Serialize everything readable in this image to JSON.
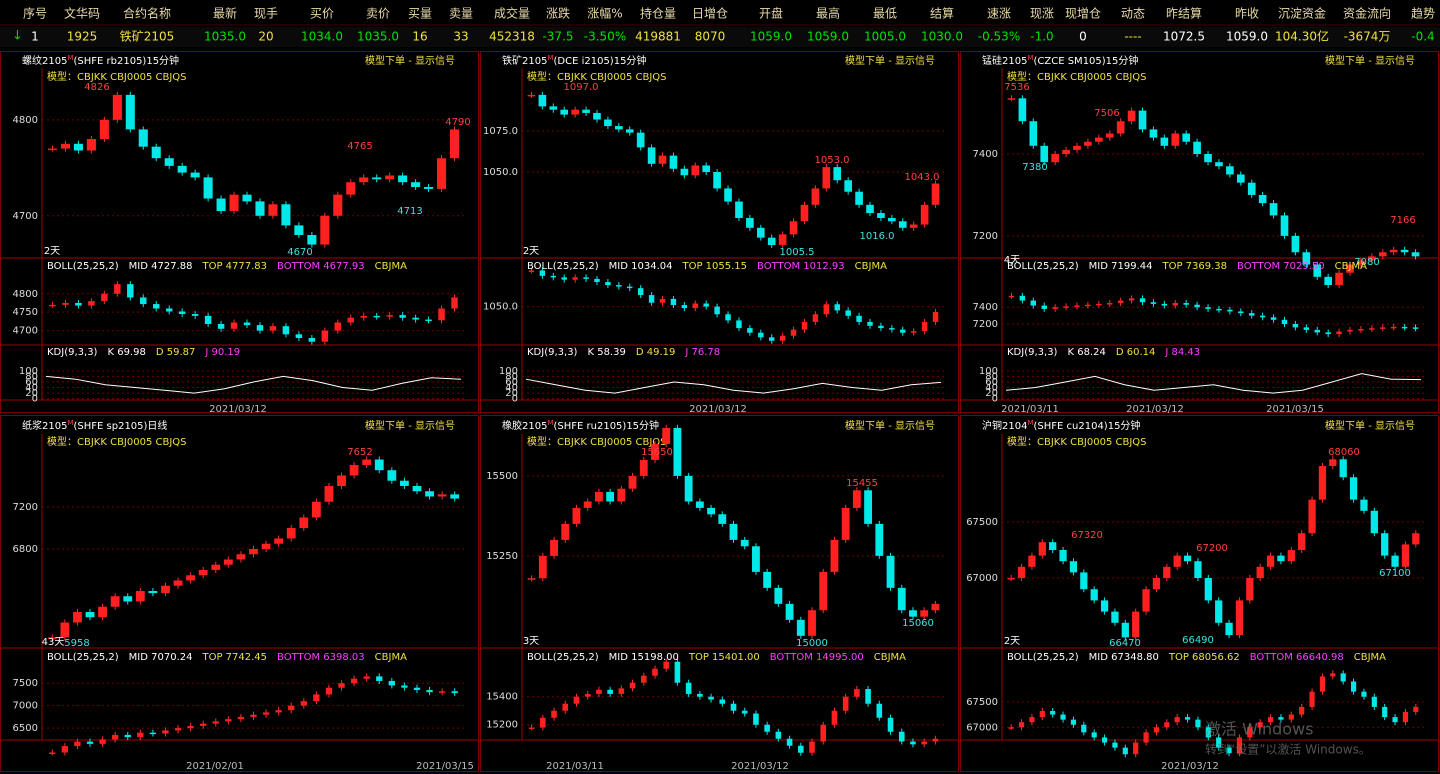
{
  "header": {
    "columns": [
      "序号",
      "文华码",
      "合约名称",
      "最新",
      "现手",
      "买价",
      "卖价",
      "买量",
      "卖量",
      "成交量",
      "涨跌",
      "涨幅%",
      "持仓量",
      "日增仓",
      "开盘",
      "最高",
      "最低",
      "结算",
      "速涨",
      "现涨",
      "现增仓",
      "动态",
      "昨结算",
      "昨收",
      "沉淀资金",
      "资金流向",
      "趋势"
    ],
    "row": [
      "1",
      "1925",
      "铁矿2105",
      "1035.0",
      "20",
      "1034.0",
      "1035.0",
      "16",
      "33",
      "452318",
      "-37.5",
      "-3.50%",
      "419881",
      "8070",
      "1059.0",
      "1059.0",
      "1005.0",
      "1030.0",
      "-0.53%",
      "-1.0",
      "0",
      "----",
      "1072.5",
      "1059.0",
      "104.30亿",
      "-3674万",
      "-0.4"
    ]
  },
  "panels": [
    {
      "name": "螺纹2105",
      "mark": "M",
      "sub": "(SHFE rb2105)15分钟",
      "model": "模型：CBJKK  CBJ0005  CBJQS",
      "signal": "模型下单 - 显示信号",
      "main": {
        "ylim": [
          4656,
          4854
        ],
        "yticks": [
          4800,
          4700
        ],
        "closes": [
          4770,
          4775,
          4768,
          4780,
          4800,
          4826,
          4790,
          4772,
          4760,
          4752,
          4745,
          4740,
          4718,
          4705,
          4722,
          4715,
          4700,
          4712,
          4690,
          4680,
          4670,
          4700,
          4722,
          4735,
          4740,
          4738,
          4742,
          4735,
          4730,
          4728,
          4760,
          4790
        ],
        "annotations": [
          "4826",
          "4765",
          "4790",
          "4713",
          "4670",
          "2天"
        ]
      },
      "boll": {
        "readout": [
          "BOLL(25,25,2)",
          "MID 4727.88",
          "TOP 4777.83",
          "BOTTOM 4677.93",
          "CBJMA"
        ],
        "ylim": [
          4661,
          4859
        ],
        "yticks": [
          4800,
          4750,
          4700
        ]
      },
      "kdj": {
        "readout": [
          "KDJ(9,3,3)",
          "K 69.98",
          "D 59.87",
          "J 90.19"
        ],
        "ylim": [
          -5,
          150
        ],
        "yticks": [
          100,
          80,
          60,
          40,
          20,
          0
        ],
        "k": [
          80,
          70,
          50,
          40,
          30,
          20,
          35,
          60,
          80,
          65,
          40,
          30,
          55,
          75,
          69.98
        ]
      },
      "dates": [
        "2021/03/12"
      ]
    },
    {
      "name": "铁矿2105",
      "mark": "M",
      "sub": "(DCE i2105)15分钟",
      "model": "模型：CBJKK  CBJ0005  CBJQS",
      "signal": "模型下单 - 显示信号",
      "main": {
        "ylim": [
          997.6,
          1113.4
        ],
        "yticks": [
          {
            "value": 1075,
            "label": "1075.0"
          },
          {
            "value": 1050,
            "label": "1050.0"
          }
        ],
        "closes": [
          1097,
          1090,
          1088,
          1085,
          1088,
          1086,
          1082,
          1078,
          1076,
          1074,
          1065,
          1055,
          1060,
          1052,
          1048,
          1054,
          1050,
          1040,
          1032,
          1022,
          1016,
          1010,
          1005.5,
          1012,
          1020,
          1030,
          1040,
          1053,
          1045,
          1038,
          1030,
          1025,
          1022,
          1020,
          1016,
          1018,
          1030,
          1043
        ],
        "annotations": [
          "1097.0",
          "1053.0",
          "1043.0",
          "1016.0",
          "1005.5",
          "2天"
        ]
      },
      "boll": {
        "readout": [
          "BOLL(25,25,2)",
          "MID 1034.04",
          "TOP 1055.15",
          "BOTTOM 1012.93",
          "CBJMA"
        ],
        "ylim": [
          1000,
          1095
        ],
        "yticks": [
          {
            "value": 1050,
            "label": "1050.0"
          }
        ]
      },
      "kdj": {
        "readout": [
          "KDJ(9,3,3)",
          "K 58.39",
          "D 49.19",
          "J 76.78"
        ],
        "ylim": [
          -5,
          150
        ],
        "yticks": [
          100,
          80,
          60,
          40,
          20,
          0
        ],
        "k": [
          70,
          50,
          30,
          20,
          40,
          60,
          50,
          30,
          20,
          35,
          55,
          40,
          30,
          50,
          58.39
        ]
      },
      "dates": [
        "2021/03/12"
      ]
    },
    {
      "name": "锰硅2105",
      "mark": "M",
      "sub": "(CZCE SM105)15分钟",
      "model": "模型：CBJKK  CBJ0005  CBJQS",
      "signal": "模型下单 - 显示信号",
      "main": {
        "ylim": [
          7146,
          7610
        ],
        "yticks": [
          7400,
          7200
        ],
        "closes": [
          7536,
          7480,
          7420,
          7380,
          7400,
          7410,
          7420,
          7430,
          7440,
          7450,
          7480,
          7506,
          7460,
          7440,
          7420,
          7450,
          7430,
          7400,
          7380,
          7370,
          7350,
          7330,
          7300,
          7280,
          7250,
          7200,
          7160,
          7130,
          7100,
          7080,
          7110,
          7130,
          7140,
          7150,
          7160,
          7166,
          7160,
          7150
        ],
        "annotations": [
          "7536",
          "7506",
          "7380",
          "7166",
          "7080",
          "4天"
        ]
      },
      "boll": {
        "readout": [
          "BOLL(25,25,2)",
          "MID 7199.44",
          "TOP 7369.38",
          "BOTTOM 7029.50",
          "CBJMA"
        ],
        "ylim": [
          6950,
          7820
        ],
        "yticks": [
          7400,
          7200
        ]
      },
      "kdj": {
        "readout": [
          "KDJ(9,3,3)",
          "K 68.24",
          "D 60.14",
          "J 84.43"
        ],
        "ylim": [
          -5,
          150
        ],
        "yticks": [
          100,
          80,
          60,
          40,
          20,
          0
        ],
        "k": [
          30,
          40,
          60,
          80,
          50,
          30,
          40,
          50,
          30,
          20,
          30,
          60,
          90,
          70,
          68.24
        ]
      },
      "dates": [
        "2021/03/11",
        "2021/03/12",
        "2021/03/15"
      ]
    },
    {
      "name": "纸浆2105",
      "mark": "M",
      "sub": "(SHFE sp2105)日线",
      "model": "模型：CBJKK  CBJ0005  CBJQS",
      "signal": "模型下单 - 显示信号",
      "main": {
        "ylim": [
          5857,
          7895
        ],
        "yticks": [
          7200,
          6800
        ],
        "closes": [
          5958,
          6100,
          6200,
          6150,
          6250,
          6350,
          6300,
          6400,
          6380,
          6450,
          6500,
          6550,
          6600,
          6650,
          6700,
          6750,
          6800,
          6850,
          6900,
          7000,
          7100,
          7250,
          7400,
          7500,
          7600,
          7652,
          7550,
          7450,
          7400,
          7350,
          7300,
          7320,
          7280
        ],
        "annotations": [
          "7652",
          "5958",
          "43天"
        ]
      },
      "boll": {
        "readout": [
          "BOLL(25,25,2)",
          "MID 7070.24",
          "TOP 7742.45",
          "BOTTOM 6398.03",
          "CBJMA"
        ],
        "ylim": [
          6236,
          7972
        ],
        "yticks": [
          7500,
          7000,
          6500
        ]
      },
      "dates": [
        "2021/02/01",
        "2021/03/15"
      ]
    },
    {
      "name": "橡胶2105",
      "mark": "M",
      "sub": "(SHFE ru2105)15分钟",
      "model": "模型：CBJKK  CBJ0005  CBJQS",
      "signal": "模型下单 - 显示信号",
      "main": {
        "ylim": [
          14962,
          15631
        ],
        "yticks": [
          15500,
          15250
        ],
        "closes": [
          15180,
          15250,
          15300,
          15350,
          15400,
          15420,
          15450,
          15420,
          15460,
          15500,
          15550,
          15600,
          15650,
          15500,
          15420,
          15400,
          15380,
          15350,
          15300,
          15280,
          15200,
          15150,
          15100,
          15050,
          15000,
          15080,
          15200,
          15300,
          15400,
          15455,
          15350,
          15250,
          15150,
          15080,
          15060,
          15080,
          15100
        ],
        "annotations": [
          "15650",
          "15455",
          "15000",
          "15060",
          "3天"
        ]
      },
      "boll": {
        "readout": [
          "BOLL(25,25,2)",
          "MID 15198.00",
          "TOP 15401.00",
          "BOTTOM 14995.00",
          "CBJMA"
        ],
        "ylim": [
          15091,
          15648
        ],
        "yticks": [
          15400,
          15200
        ]
      },
      "dates": [
        "2021/03/11",
        "2021/03/12"
      ]
    },
    {
      "name": "沪铜2104",
      "mark": "M",
      "sub": "(SHFE cu2104)15分钟",
      "model": "模型：CBJKK  CBJ0005  CBJQS",
      "signal": "模型下单 - 显示信号",
      "main": {
        "ylim": [
          66375,
          68286
        ],
        "yticks": [
          67500,
          67000
        ],
        "closes": [
          67000,
          67100,
          67200,
          67320,
          67250,
          67150,
          67050,
          66900,
          66800,
          66700,
          66600,
          66470,
          66700,
          66900,
          67000,
          67100,
          67200,
          67150,
          67000,
          66800,
          66600,
          66490,
          66800,
          67000,
          67100,
          67200,
          67150,
          67250,
          67400,
          67700,
          68000,
          68060,
          67900,
          67700,
          67600,
          67400,
          67200,
          67100,
          67300,
          67400
        ],
        "annotations": [
          "68060",
          "67320",
          "67200",
          "67100",
          "66470",
          "66490",
          "2天"
        ]
      },
      "boll": {
        "readout": [
          "BOLL(25,25,2)",
          "MID 67348.80",
          "TOP 68056.62",
          "BOTTOM 66640.98",
          "CBJMA"
        ],
        "ylim": [
          66750,
          68283
        ],
        "yticks": [
          67500,
          67000
        ]
      },
      "dates": [
        "2021/03/12"
      ]
    }
  ],
  "watermark": {
    "title": "激活 Windows",
    "hint": "转到“设置”以激活 Windows。"
  }
}
